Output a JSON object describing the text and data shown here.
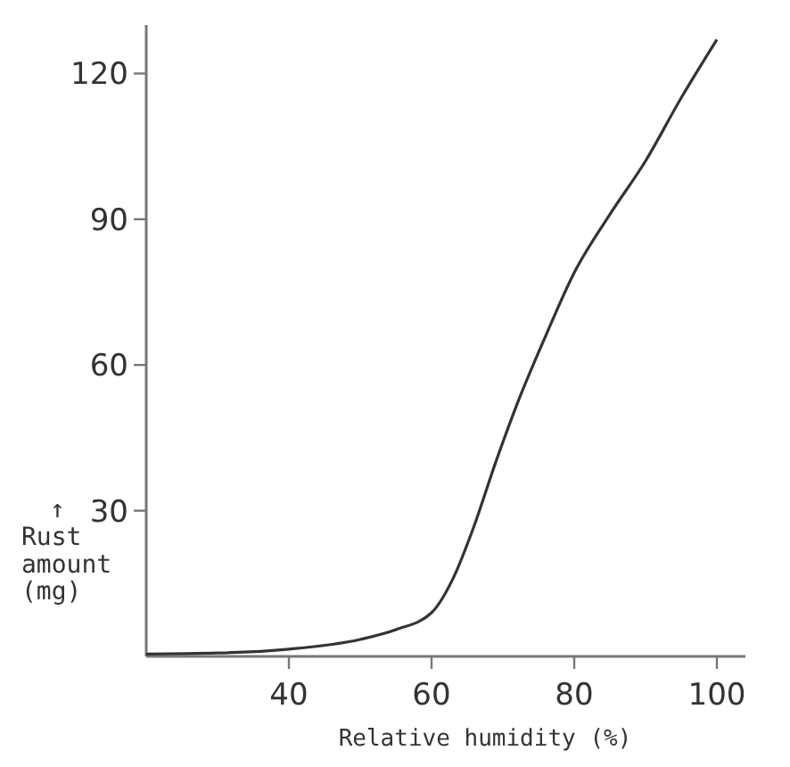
{
  "chart_data": {
    "type": "line",
    "xlabel": "Relative humidity (%)",
    "ylabel": "↑\nRust\namount\n(mg)",
    "x": [
      20,
      30,
      40,
      50,
      55,
      60,
      63,
      66,
      69,
      72,
      76,
      80,
      85,
      90,
      95,
      100
    ],
    "series": [
      {
        "color": "#333333",
        "values": [
          0.5,
          0.7,
          1.5,
          3.5,
          5.5,
          9,
          16,
          27,
          40,
          52,
          66,
          79,
          91,
          102,
          115,
          127
        ]
      }
    ],
    "xlim": [
      20,
      104
    ],
    "xticks": [
      40,
      60,
      80,
      100
    ],
    "ylim": [
      0,
      130
    ],
    "yticks": [
      30,
      60,
      90,
      120
    ],
    "marker": "none",
    "line_style": "solid"
  }
}
